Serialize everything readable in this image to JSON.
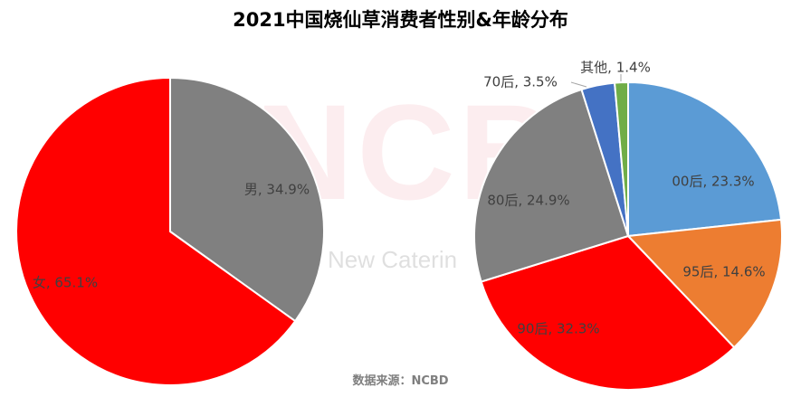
{
  "title": "2021中国烧仙草消费者性别&年龄分布",
  "source": "数据来源：NCBD",
  "watermark": {
    "logo": "NCBD",
    "tagline": "New Caterin"
  },
  "chart_data": [
    {
      "type": "pie",
      "title": "",
      "slices": [
        {
          "label": "男",
          "value": 34.9,
          "display": "男, 34.9%",
          "color": "#808080"
        },
        {
          "label": "女",
          "value": 65.1,
          "display": "女, 65.1%",
          "color": "#ff0000"
        }
      ]
    },
    {
      "type": "pie",
      "title": "",
      "slices": [
        {
          "label": "00后",
          "value": 23.3,
          "display": "00后, 23.3%",
          "color": "#5b9bd5"
        },
        {
          "label": "95后",
          "value": 14.6,
          "display": "95后, 14.6%",
          "color": "#ed7d31"
        },
        {
          "label": "90后",
          "value": 32.3,
          "display": "90后, 32.3%",
          "color": "#ff0000"
        },
        {
          "label": "80后",
          "value": 24.9,
          "display": "80后, 24.9%",
          "color": "#808080"
        },
        {
          "label": "70后",
          "value": 3.5,
          "display": "70后, 3.5%",
          "color": "#4472c4"
        },
        {
          "label": "其他",
          "value": 1.4,
          "display": "其他, 1.4%",
          "color": "#70ad47"
        }
      ]
    }
  ]
}
